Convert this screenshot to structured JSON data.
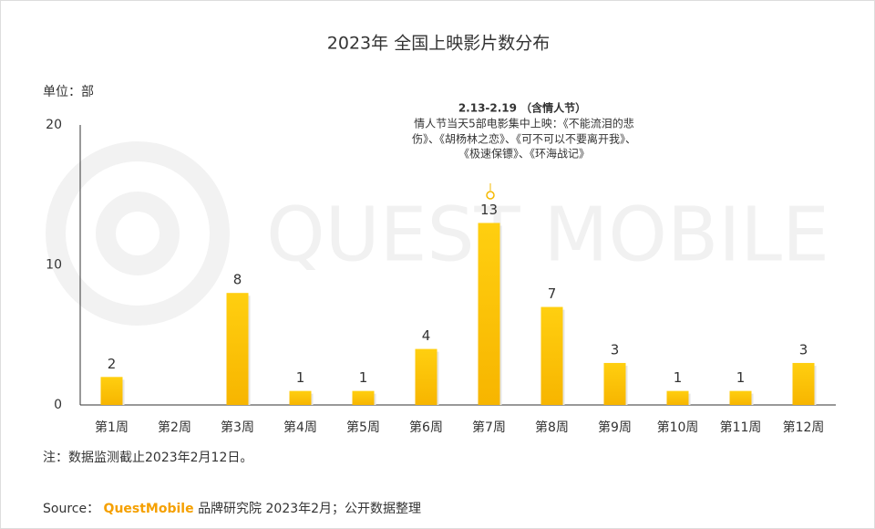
{
  "chart_data": {
    "type": "bar",
    "title": "2023年 全国上映影片数分布",
    "unit_label": "单位：部",
    "watermark": "QUEST MOBILE",
    "categories": [
      "第1周",
      "第2周",
      "第3周",
      "第4周",
      "第5周",
      "第6周",
      "第7周",
      "第8周",
      "第9周",
      "第10周",
      "第11周",
      "第12周"
    ],
    "values": [
      2,
      0,
      8,
      1,
      1,
      4,
      13,
      7,
      3,
      1,
      1,
      3
    ],
    "color": "#ffc60b",
    "ylim": [
      0,
      20
    ],
    "yticks": [
      0,
      10,
      20
    ],
    "grid": false,
    "annotation": {
      "title": "2.13-2.19 （含情人节）",
      "lines": [
        "情人节当天5部电影集中上映：《不能流泪的悲",
        "伤》、《胡杨林之恋》、《可不可以不要离开我》、",
        "《极速保镖》、《环海战记》"
      ]
    },
    "note": "注：数据监测截止2023年2月12日。",
    "source": {
      "label": "Source：",
      "brand": "QuestMobile",
      "text": "品牌研究院 2023年2月；公开数据整理"
    }
  }
}
